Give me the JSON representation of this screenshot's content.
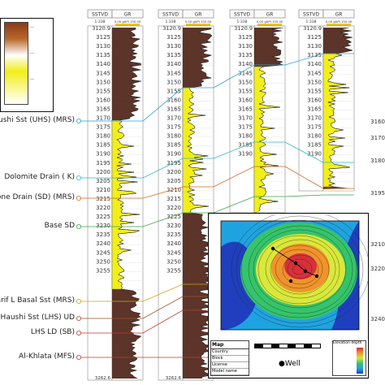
{
  "well_columns": [
    {
      "header": {
        "depth_label": "SSTVD",
        "curve_label": "GR",
        "scale_top": "1:338",
        "scale_range": "0.00 gAPI 150.00"
      },
      "top_depth": "3120.9",
      "depths": [
        "3125",
        "3130",
        "3135",
        "3140",
        "3145",
        "3150",
        "3155",
        "3160",
        "3165",
        "3170",
        "3175",
        "3180",
        "3185",
        "3190",
        "3195",
        "3200",
        "3205",
        "3210",
        "3215",
        "3220",
        "3225",
        "3230",
        "3235",
        "3240",
        "3245",
        "3250",
        "3255"
      ],
      "bottom_depth": "3262.6"
    },
    {
      "header": {
        "depth_label": "SSTVD",
        "curve_label": "GR",
        "scale_top": "1:338",
        "scale_range": "0.00 gAPI 150.00"
      },
      "top_depth": "3120.9",
      "depths": [
        "3125",
        "3130",
        "3135",
        "3140",
        "3145",
        "3150",
        "3155",
        "3160",
        "3165",
        "3170",
        "3175",
        "3180",
        "3185",
        "3190",
        "3195",
        "3200",
        "3205",
        "3210",
        "3215",
        "3220",
        "3225",
        "3230",
        "3235",
        "3240",
        "3245",
        "3250",
        "3255"
      ],
      "bottom_depth": "3262.6"
    },
    {
      "header": {
        "depth_label": "SSTVD",
        "curve_label": "GR",
        "scale_top": "1:338",
        "scale_range": "0.00 gAPI 150.00"
      },
      "top_depth": "3120.9",
      "depths": [
        "3125",
        "3130",
        "3135",
        "3140",
        "3145",
        "3150",
        "3155",
        "3160",
        "3165",
        "3170",
        "3175",
        "3180",
        "3185",
        "3190"
      ]
    },
    {
      "header": {
        "depth_label": "SSTVD",
        "curve_label": "GR",
        "scale_top": "1:338",
        "scale_range": "0.00 gAPI 150.00"
      },
      "top_depth": "3120.9",
      "depths": [
        "3125",
        "3130",
        "3135",
        "3140",
        "3145",
        "3150",
        "3155",
        "3160",
        "3165",
        "3170",
        "3175",
        "3180",
        "3185",
        "3190"
      ]
    }
  ],
  "right_edge_depths": [
    "3160",
    "3170",
    "3180",
    "3195",
    "3210",
    "3220",
    "3240"
  ],
  "formation_tops": [
    {
      "name": "Haushi Sst (UHS) (MRS)",
      "color": "#2a9fd6"
    },
    {
      "name": "Dolomite Drain ( K)",
      "color": "#2fb9c9"
    },
    {
      "name": "one Drain (SD) (MRS)",
      "color": "#d46a1f"
    },
    {
      "name": "Base SD",
      "color": "#3aa64a"
    },
    {
      "name": "arif L Basal Sst (MRS)",
      "color": "#c8a31a"
    },
    {
      "name": "r Haushi Sst (LHS) UD",
      "color": "#a0522d"
    },
    {
      "name": "LHS LD (SB)",
      "color": "#c0392b"
    },
    {
      "name": "Al-Khlata (MFS)",
      "color": "#c0392b"
    }
  ],
  "map": {
    "title": "Map",
    "legend_title": "Elevation depth",
    "well_label": "Well",
    "info_rows": [
      "Country",
      "Block",
      "License",
      "Model name"
    ],
    "colors": {
      "low": "#1f3fbf",
      "mid1": "#1fa3e0",
      "mid2": "#35c46a",
      "mid3": "#d9e83a",
      "high": "#f0932b",
      "peak": "#d8303a"
    }
  },
  "colors": {
    "sand": "#f2ee1a",
    "shale": "#4a1e12",
    "track_border": "#777777"
  }
}
